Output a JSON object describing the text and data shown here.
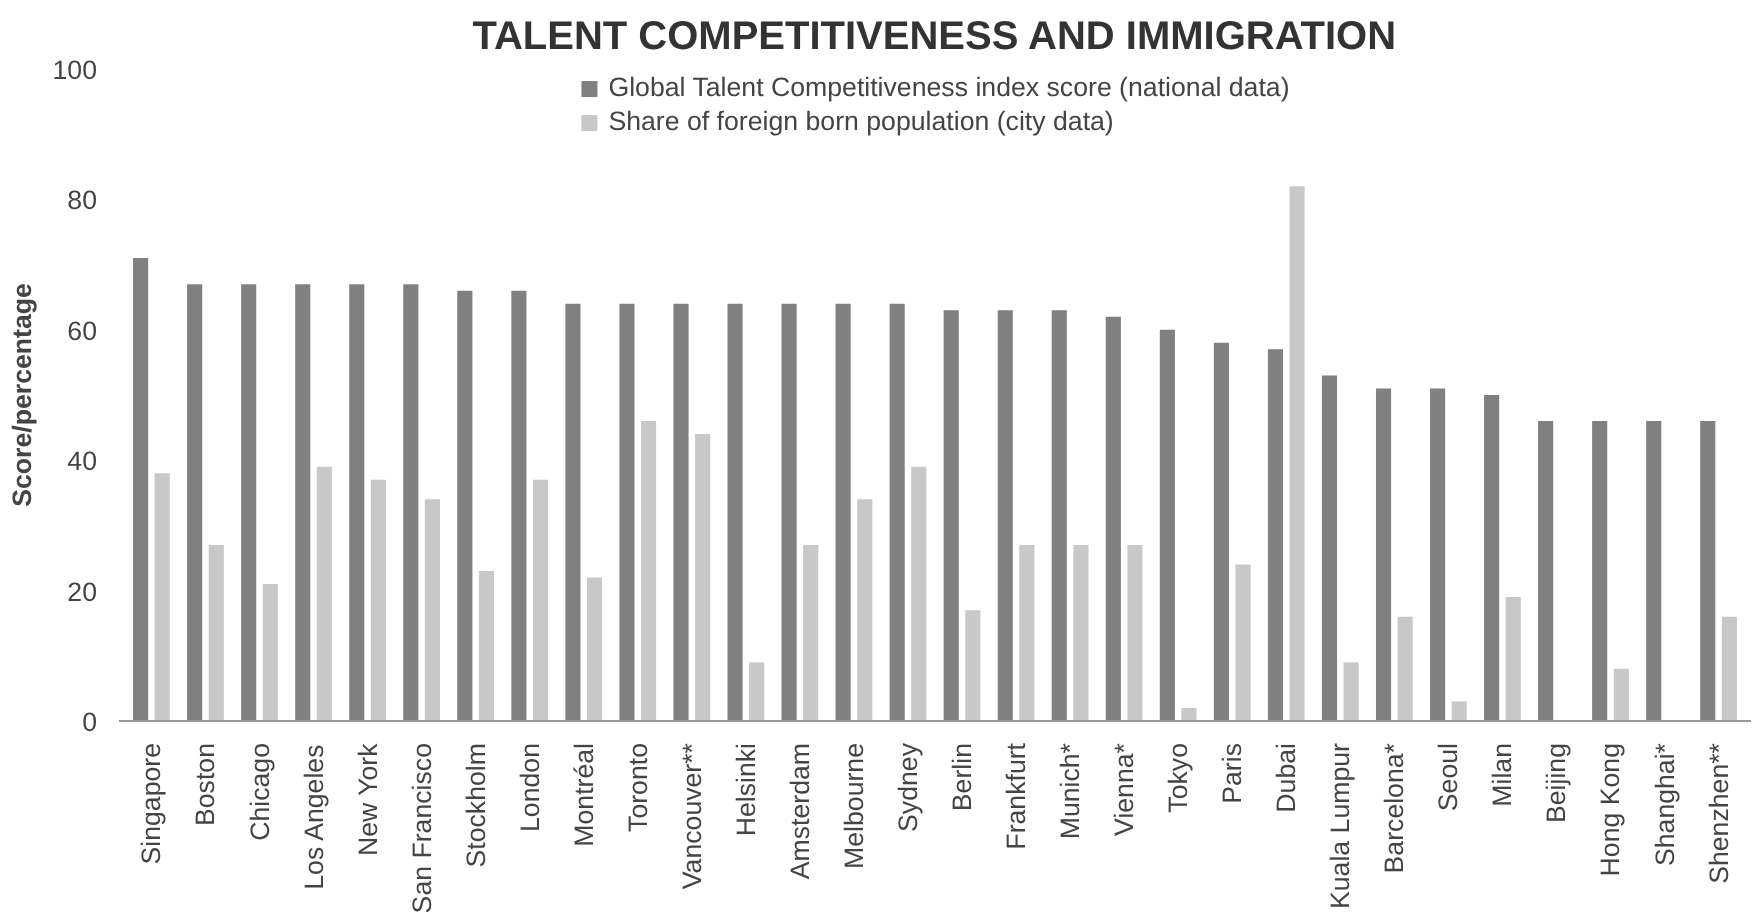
{
  "chart_data": {
    "type": "bar",
    "title": "TALENT COMPETITIVENESS AND IMMIGRATION",
    "ylabel": "Score/percentage",
    "categories": [
      "Singapore",
      "Boston",
      "Chicago",
      "Los Angeles",
      "New York",
      "San Francisco",
      "Stockholm",
      "London",
      "Montréal",
      "Toronto",
      "Vancouver**",
      "Helsinki",
      "Amsterdam",
      "Melbourne",
      "Sydney",
      "Berlin",
      "Frankfurt",
      "Munich*",
      "Vienna*",
      "Tokyo",
      "Paris",
      "Dubai",
      "Kuala Lumpur",
      "Barcelona*",
      "Seoul",
      "Milan",
      "Beijing",
      "Hong Kong",
      "Shanghai*",
      "Shenzhen**"
    ],
    "series": [
      {
        "name": "Global Talent Competitiveness index score (national data)",
        "color": "#808080",
        "values": [
          71,
          67,
          67,
          67,
          67,
          67,
          66,
          66,
          64,
          64,
          64,
          64,
          64,
          64,
          64,
          63,
          63,
          63,
          62,
          60,
          58,
          57,
          53,
          51,
          51,
          50,
          46,
          46,
          46,
          46
        ]
      },
      {
        "name": "Share of foreign born population (city data)",
        "color": "#c8c8c8",
        "values": [
          38,
          27,
          21,
          39,
          37,
          34,
          23,
          37,
          22,
          46,
          44,
          9,
          27,
          34,
          39,
          17,
          27,
          27,
          27,
          2,
          24,
          82,
          9,
          16,
          3,
          19,
          null,
          8,
          null,
          16
        ]
      }
    ],
    "ylim": [
      0,
      100
    ],
    "yticks": [
      0,
      20,
      40,
      60,
      80,
      100
    ],
    "grid": false,
    "legend": "top"
  }
}
